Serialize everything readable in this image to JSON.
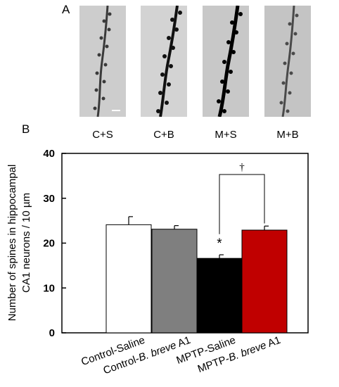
{
  "panel_a": {
    "letter": "A",
    "labels": [
      "C+S",
      "C+B",
      "M+S",
      "M+B"
    ]
  },
  "chart_data": {
    "type": "bar",
    "panel_letter": "B",
    "categories": [
      "Control-Saline",
      "Control-B. breve A1",
      "MPTP-Saline",
      "MPTP-B. breve A1"
    ],
    "category_parts": [
      [
        {
          "t": "Control-Saline",
          "i": false
        }
      ],
      [
        {
          "t": "Control-",
          "i": false
        },
        {
          "t": "B. breve",
          "i": true
        },
        {
          "t": " A1",
          "i": false
        }
      ],
      [
        {
          "t": "MPTP-Saline",
          "i": false
        }
      ],
      [
        {
          "t": "MPTP-",
          "i": false
        },
        {
          "t": "B. breve",
          "i": true
        },
        {
          "t": " A1",
          "i": false
        }
      ]
    ],
    "values": [
      24.1,
      23.1,
      16.6,
      22.9
    ],
    "errors": [
      1.8,
      0.8,
      0.8,
      0.9
    ],
    "colors": [
      "#ffffff",
      "#7f7f7f",
      "#000000",
      "#c00000"
    ],
    "ylabel_lines": [
      "Number of spines in hippocampal",
      "CA1 neurons  / 10 µm"
    ],
    "ylim": [
      0,
      40
    ],
    "yticks": [
      0,
      10,
      20,
      30,
      40
    ],
    "xlabel": "",
    "grid": false,
    "annotations": [
      {
        "text": "*",
        "category": "MPTP-Saline"
      },
      {
        "text": "†",
        "between": [
          "MPTP-Saline",
          "MPTP-B. breve A1"
        ]
      }
    ]
  }
}
